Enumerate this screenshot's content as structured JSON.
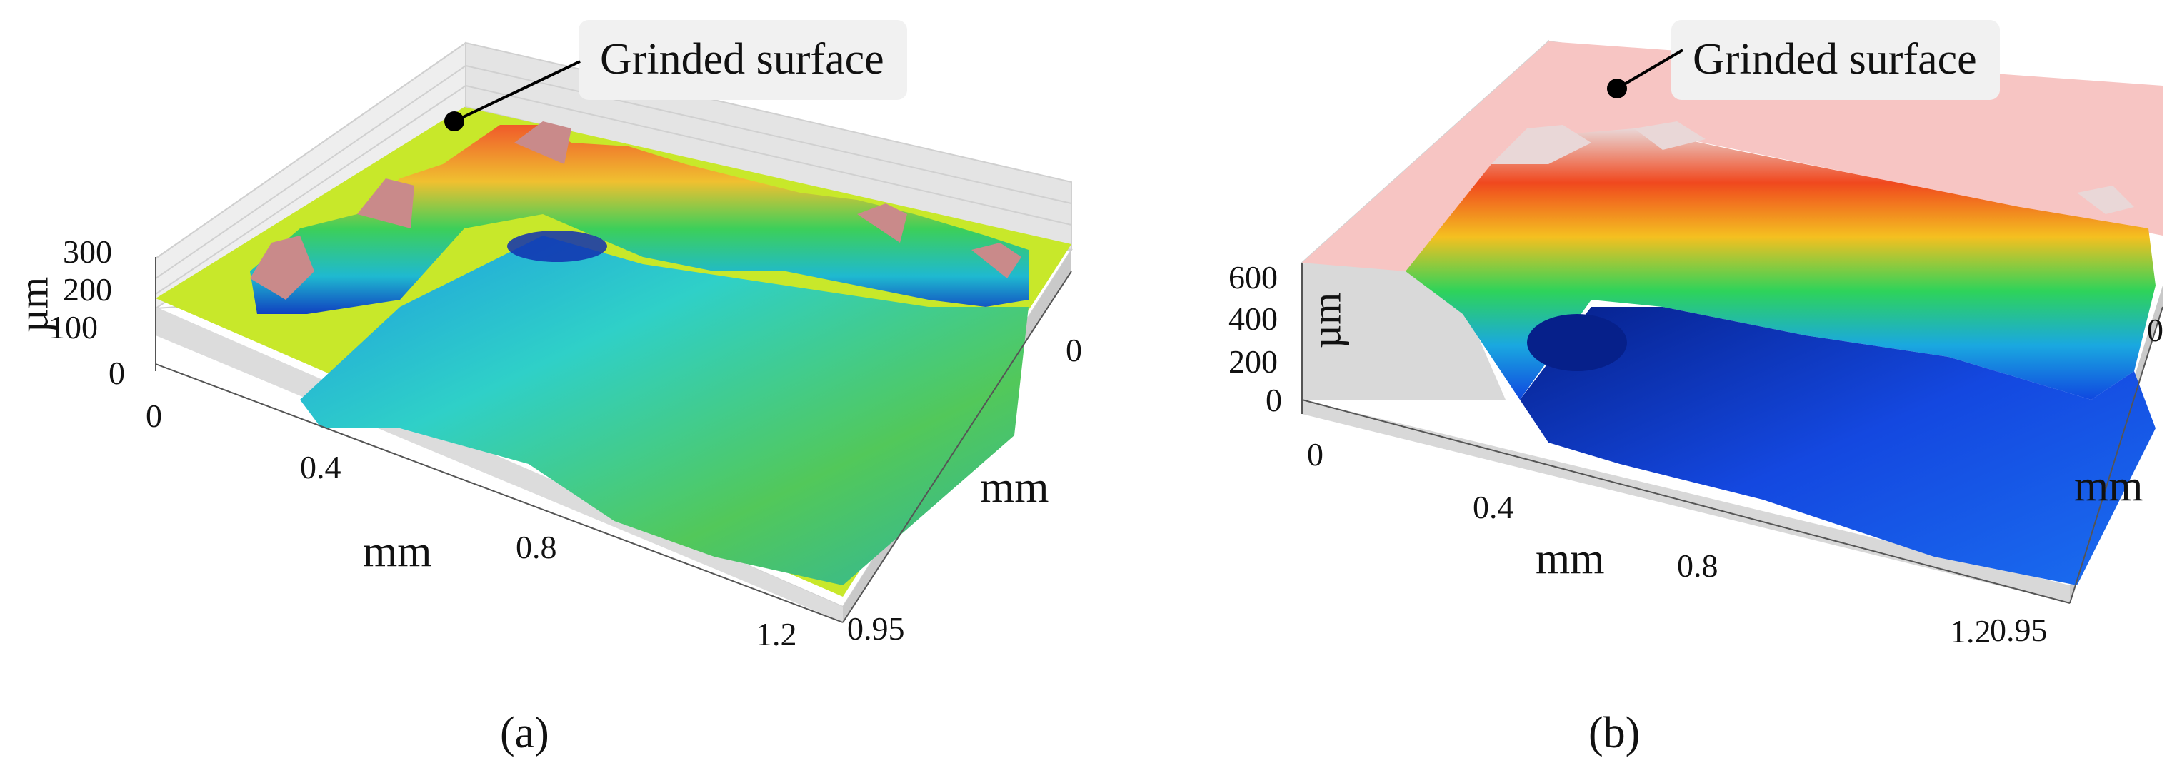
{
  "panels": [
    {
      "callout": "Grinded surface",
      "z_axis": {
        "label": "µm",
        "ticks": [
          "300",
          "200",
          "100",
          "0"
        ]
      },
      "x_axis": {
        "label": "mm",
        "ticks": [
          "0",
          "0.4",
          "0.8",
          "1.2"
        ]
      },
      "y_axis": {
        "label": "mm",
        "ticks": [
          "0",
          "0.95"
        ]
      },
      "caption": "(a)",
      "colors": {
        "plane": "#c8e82a",
        "rim": "#e9542a",
        "peak": "#c98a8a",
        "floor": "#2fd0c8",
        "deep": "#1030b0",
        "mid": "#49c84a"
      }
    },
    {
      "callout": "Grinded surface",
      "z_axis": {
        "label": "µm",
        "ticks": [
          "600",
          "400",
          "200",
          "0"
        ]
      },
      "x_axis": {
        "label": "mm",
        "ticks": [
          "0",
          "0.4",
          "0.8",
          "1.2"
        ]
      },
      "y_axis": {
        "label": "mm",
        "ticks": [
          "0",
          "0.95"
        ]
      },
      "caption": "(b)",
      "colors": {
        "plane": "#f7c5c3",
        "rim": "#f06a1e",
        "peak": "#e9d7d7",
        "floor": "#1448e0",
        "deep": "#06208a",
        "mid": "#26c84a"
      }
    }
  ]
}
